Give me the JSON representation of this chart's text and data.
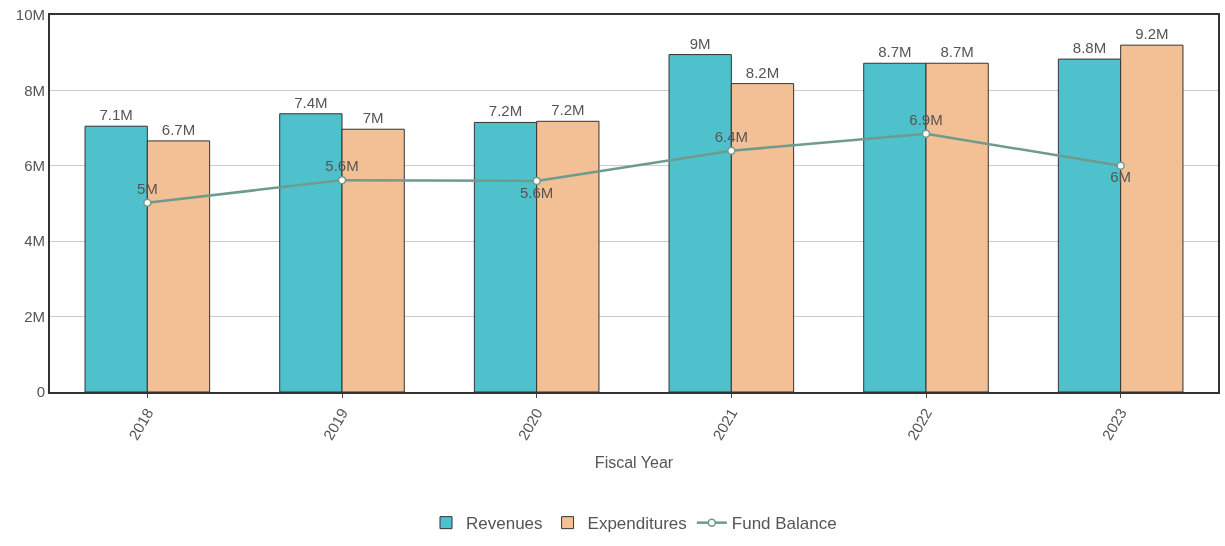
{
  "chart_data": {
    "type": "bar",
    "xlabel": "Fiscal Year",
    "categories": [
      "2018",
      "2019",
      "2020",
      "2021",
      "2022",
      "2023"
    ],
    "series": [
      {
        "name": "Revenues",
        "color": "#4fc1cc",
        "values": [
          7050000,
          7380000,
          7150000,
          8950000,
          8720000,
          8830000
        ],
        "value_labels": [
          "7.1M",
          "7.4M",
          "7.2M",
          "9M",
          "8.7M",
          "8.8M"
        ]
      },
      {
        "name": "Expenditures",
        "color": "#f3c095",
        "values": [
          6660000,
          6970000,
          7180000,
          8180000,
          8720000,
          9200000
        ],
        "value_labels": [
          "6.7M",
          "7M",
          "7.2M",
          "8.2M",
          "8.7M",
          "9.2M"
        ]
      },
      {
        "name": "Fund Balance",
        "type": "line",
        "color": "#6f9a8d",
        "marker": "circle",
        "values": [
          5020000,
          5620000,
          5600000,
          6400000,
          6850000,
          6000000
        ],
        "value_labels": [
          "5M",
          "5.6M",
          "5.6M",
          "6.4M",
          "6.9M",
          "6M"
        ]
      }
    ],
    "ylim": [
      0,
      10000000
    ],
    "yticks": [
      {
        "value": 0,
        "label": "0"
      },
      {
        "value": 2000000,
        "label": "2M"
      },
      {
        "value": 4000000,
        "label": "4M"
      },
      {
        "value": 6000000,
        "label": "6M"
      },
      {
        "value": 8000000,
        "label": "8M"
      },
      {
        "value": 10000000,
        "label": "10M"
      }
    ],
    "grid": "y",
    "legend": "bottom"
  }
}
